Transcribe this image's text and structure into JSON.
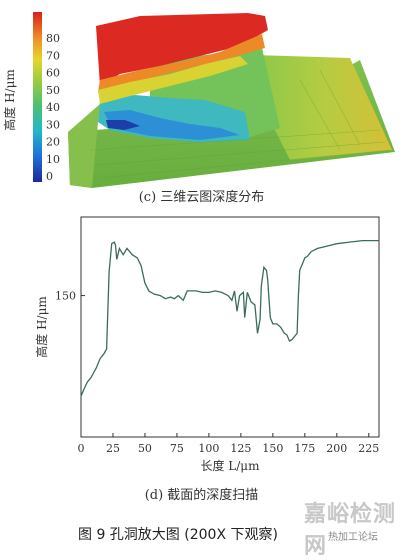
{
  "panel_c": {
    "colorbar_ticks": [
      "0",
      "10",
      "20",
      "30",
      "40",
      "50",
      "60",
      "70",
      "80"
    ],
    "colorbar_label": "高度 H/μm",
    "caption": "(c) 三维云图深度分布"
  },
  "panel_d": {
    "caption": "(d) 截面的深度扫描"
  },
  "figure_caption": "图 9   孔洞放大图 (200X 下观察)",
  "watermark": {
    "main": "嘉峪检测网",
    "sub": "热加工论坛"
  },
  "chart_data": {
    "type": "line",
    "xlabel": "长度 L/μm",
    "ylabel": "高度 H/μm",
    "x_ticks": [
      0,
      25,
      50,
      75,
      100,
      125,
      150,
      175,
      200,
      225
    ],
    "y_ticks": [
      150
    ],
    "xlim": [
      0,
      233
    ],
    "ylim": [
      60,
      200
    ],
    "grid": false,
    "series": [
      {
        "color": "#3b6b5e",
        "points": [
          [
            0,
            86
          ],
          [
            2,
            90
          ],
          [
            5,
            95
          ],
          [
            8,
            98
          ],
          [
            12,
            104
          ],
          [
            15,
            110
          ],
          [
            18,
            113
          ],
          [
            20,
            116
          ],
          [
            22,
            165
          ],
          [
            24,
            183
          ],
          [
            26,
            184
          ],
          [
            27,
            182
          ],
          [
            28,
            173
          ],
          [
            30,
            180
          ],
          [
            33,
            176
          ],
          [
            36,
            180
          ],
          [
            40,
            176
          ],
          [
            44,
            174
          ],
          [
            47,
            169
          ],
          [
            50,
            158
          ],
          [
            53,
            153
          ],
          [
            57,
            151
          ],
          [
            62,
            150
          ],
          [
            66,
            148
          ],
          [
            70,
            149
          ],
          [
            73,
            148
          ],
          [
            76,
            150
          ],
          [
            80,
            147
          ],
          [
            83,
            153
          ],
          [
            86,
            153
          ],
          [
            90,
            153
          ],
          [
            95,
            152
          ],
          [
            100,
            152
          ],
          [
            105,
            153
          ],
          [
            110,
            152
          ],
          [
            115,
            150
          ],
          [
            118,
            147
          ],
          [
            120,
            153
          ],
          [
            122,
            140
          ],
          [
            124,
            150
          ],
          [
            127,
            152
          ],
          [
            128,
            136
          ],
          [
            130,
            152
          ],
          [
            133,
            146
          ],
          [
            136,
            144
          ],
          [
            138,
            126
          ],
          [
            140,
            135
          ],
          [
            141,
            156
          ],
          [
            143,
            168
          ],
          [
            145,
            166
          ],
          [
            146,
            160
          ],
          [
            148,
            136
          ],
          [
            150,
            132
          ],
          [
            153,
            132
          ],
          [
            156,
            130
          ],
          [
            159,
            126
          ],
          [
            161,
            125
          ],
          [
            163,
            121
          ],
          [
            165,
            122
          ],
          [
            167,
            124
          ],
          [
            169,
            126
          ],
          [
            170,
            150
          ],
          [
            171,
            166
          ],
          [
            173,
            170
          ],
          [
            175,
            174
          ],
          [
            177,
            175
          ],
          [
            180,
            178
          ],
          [
            185,
            180
          ],
          [
            190,
            181
          ],
          [
            195,
            182
          ],
          [
            200,
            183
          ],
          [
            210,
            184
          ],
          [
            220,
            185
          ],
          [
            233,
            185
          ]
        ]
      }
    ]
  }
}
